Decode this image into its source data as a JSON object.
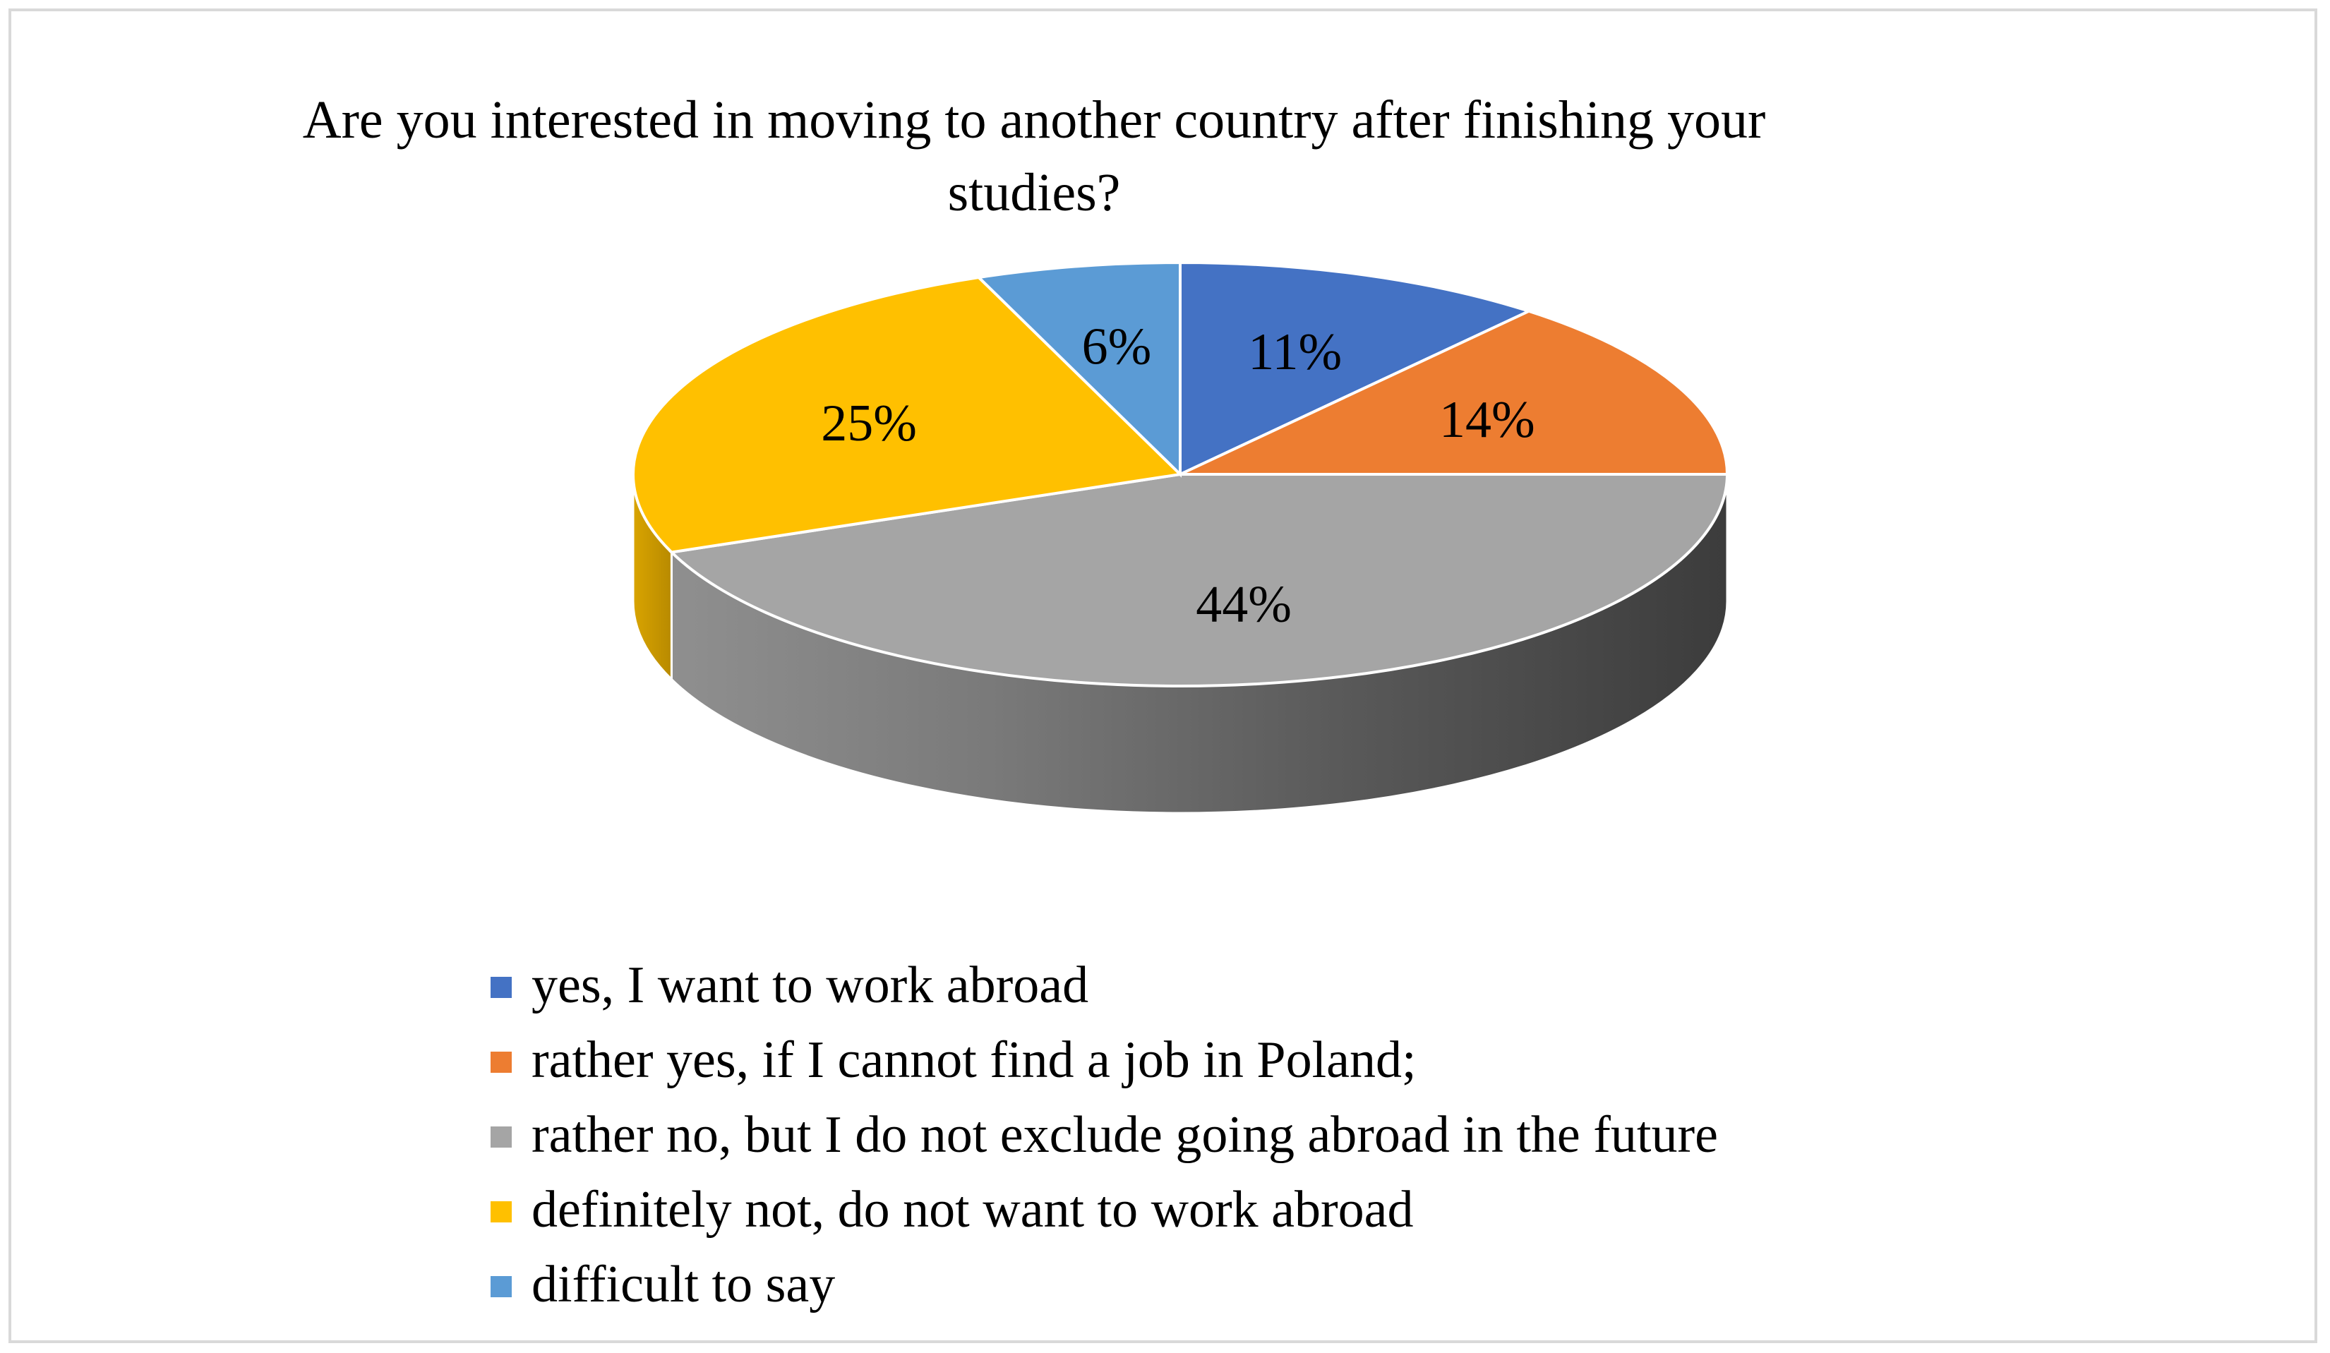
{
  "chart_data": {
    "type": "pie",
    "style": "3d",
    "title": [
      "Are you interested in moving to another country after finishing your",
      "studies?"
    ],
    "categories": [
      "yes, I want to work abroad",
      "rather yes, if I cannot find a job in Poland;",
      "rather no, but I do not exclude going abroad in the future",
      "definitely not, do not want to work abroad",
      "difficult to say"
    ],
    "values": [
      11,
      14,
      44,
      25,
      6
    ],
    "labels": [
      "11%",
      "14%",
      "44%",
      "25%",
      "6%"
    ],
    "colors": [
      "#4472C4",
      "#ED7D31",
      "#A5A5A5",
      "#FFC000",
      "#5B9BD5"
    ],
    "legend_position": "bottom"
  }
}
